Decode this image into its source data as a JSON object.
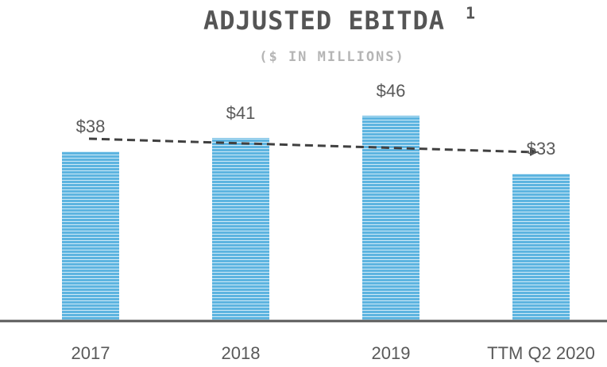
{
  "chart_data": {
    "type": "bar",
    "title": "ADJUSTED EBITDA",
    "title_note": "1",
    "subtitle": "($ IN MILLIONS)",
    "categories": [
      "2017",
      "2018",
      "2019",
      "TTM Q2 2020"
    ],
    "values": [
      38,
      41,
      46,
      33
    ],
    "value_labels": [
      "$38",
      "$41",
      "$46",
      "$33"
    ],
    "color": "#5db4e0"
  }
}
